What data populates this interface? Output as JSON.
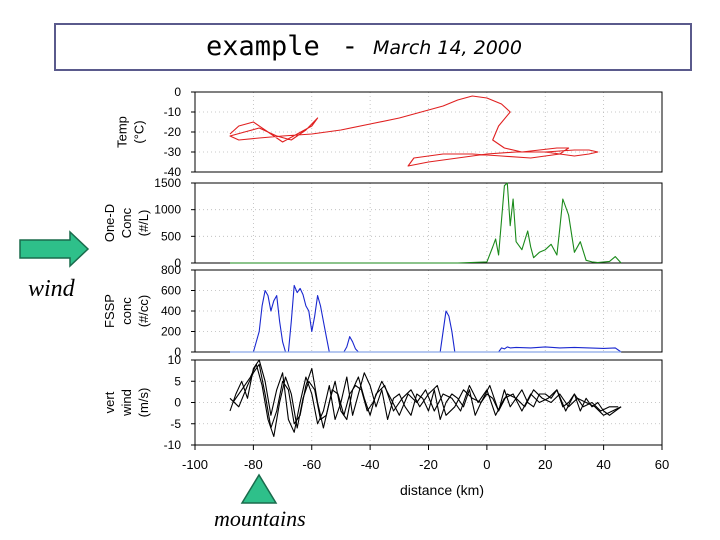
{
  "title": {
    "main": "example",
    "separator": "-",
    "date": "March 14, 2000"
  },
  "annotations": {
    "wind": "wind",
    "mountains": "mountains",
    "arrow_color": "#2ec08a",
    "triangle_color": "#2ec08a"
  },
  "chart_data": {
    "type": "line",
    "shared_x": {
      "label": "distance (km)",
      "range": [
        -100,
        60
      ],
      "ticks": [
        -100,
        -80,
        -60,
        -40,
        -20,
        0,
        20,
        40,
        60
      ]
    },
    "grid": "dotted",
    "panels": [
      {
        "id": "temp",
        "ylabel": [
          "Temp",
          "(°C)"
        ],
        "ylim": [
          -40,
          0
        ],
        "yticks": [
          0,
          -10,
          -20,
          -30,
          -40
        ],
        "color": "#e02020",
        "series": [
          {
            "x": [
              -88,
              -85,
              -80,
              -75,
              -70,
              -65,
              -60,
              -58,
              -62,
              -67,
              -72,
              -78,
              -83,
              -88,
              -85,
              -78,
              -70,
              -60,
              -50,
              -40,
              -30,
              -20,
              -15,
              -10,
              -5,
              0,
              5,
              8,
              4,
              2,
              6,
              12,
              18,
              24,
              28,
              25,
              15,
              5,
              -5,
              -15,
              -25,
              -27,
              -20,
              -10,
              0,
              10,
              20,
              30,
              35,
              38,
              35,
              30,
              25,
              20
            ],
            "y": [
              -21,
              -17,
              -15,
              -20,
              -25,
              -21,
              -17,
              -13,
              -19,
              -24,
              -22,
              -18,
              -20,
              -22,
              -24,
              -23,
              -22,
              -21,
              -19,
              -16,
              -13,
              -9,
              -7,
              -4,
              -2,
              -3,
              -6,
              -10,
              -17,
              -24,
              -28,
              -30,
              -29,
              -28,
              -28,
              -31,
              -33,
              -32,
              -31,
              -31,
              -33,
              -37,
              -35,
              -33,
              -31,
              -30,
              -30,
              -29,
              -29,
              -30,
              -31,
              -32,
              -31,
              -30
            ]
          }
        ]
      },
      {
        "id": "one-d",
        "ylabel": [
          "One-D",
          "Conc",
          "(#/L)"
        ],
        "ylim": [
          0,
          1500
        ],
        "yticks": [
          1500,
          1000,
          500,
          0
        ],
        "color": "#1a8a1a",
        "series": [
          {
            "x": [
              -88,
              -70,
              -55,
              -30,
              -10,
              0,
              2,
              3,
              4,
              5,
              6,
              7,
              8,
              9,
              10,
              12,
              14,
              15,
              16,
              18,
              20,
              22,
              24,
              25,
              26,
              28,
              30,
              32,
              34,
              36,
              38,
              42,
              44,
              46
            ],
            "y": [
              0,
              0,
              0,
              0,
              0,
              20,
              300,
              450,
              150,
              800,
              1450,
              1500,
              700,
              1200,
              400,
              250,
              600,
              300,
              100,
              200,
              250,
              350,
              150,
              650,
              1200,
              900,
              200,
              400,
              50,
              20,
              10,
              30,
              120,
              0
            ]
          }
        ]
      },
      {
        "id": "fssp",
        "ylabel": [
          "FSSP",
          "conc",
          "(#/cc)"
        ],
        "ylim": [
          0,
          800
        ],
        "yticks": [
          800,
          600,
          400,
          200,
          0
        ],
        "color": "#1a28d0",
        "series": [
          {
            "x": [
              -88,
              -80,
              -78,
              -77,
              -76,
              -75,
              -74,
              -73,
              -72,
              -71,
              -70,
              -69,
              -68,
              -67,
              -66,
              -65,
              -64,
              -63,
              -62,
              -61,
              -60,
              -59,
              -58,
              -57,
              -56,
              -55,
              -54,
              -53,
              -52,
              -51,
              -50,
              -49,
              -48,
              -47,
              -46,
              -45,
              -44,
              -43,
              -42,
              -41,
              -40,
              -39,
              -38,
              -37,
              -30,
              -20,
              -16,
              -15,
              -14,
              -13,
              -12,
              -11,
              -10,
              -5,
              0,
              4,
              5,
              6,
              7,
              8,
              10,
              15,
              20,
              25,
              30,
              35,
              40,
              44,
              46
            ],
            "y": [
              0,
              0,
              200,
              450,
              600,
              550,
              400,
              500,
              550,
              300,
              100,
              0,
              0,
              300,
              650,
              580,
              620,
              560,
              450,
              400,
              200,
              350,
              550,
              450,
              300,
              150,
              0,
              0,
              0,
              0,
              0,
              0,
              50,
              150,
              100,
              30,
              0,
              0,
              0,
              0,
              0,
              0,
              0,
              0,
              0,
              0,
              0,
              200,
              400,
              350,
              200,
              0,
              0,
              0,
              0,
              0,
              40,
              30,
              50,
              40,
              45,
              40,
              50,
              40,
              45,
              40,
              35,
              40,
              0
            ]
          }
        ]
      },
      {
        "id": "vert-wind",
        "ylabel": [
          "vert",
          "wind",
          "(m/s)"
        ],
        "ylim": [
          -10,
          10
        ],
        "yticks": [
          10,
          5,
          0,
          -5,
          -10
        ],
        "color": "#000000",
        "series": [
          {
            "x": [
              -88,
              -86,
              -84,
              -82,
              -80,
              -78,
              -76,
              -74,
              -72,
              -70,
              -68,
              -66,
              -64,
              -62,
              -60,
              -58,
              -56,
              -54,
              -52,
              -50,
              -48,
              -46,
              -44,
              -42,
              -40,
              -38,
              -36,
              -34,
              -32,
              -30,
              -28,
              -26,
              -24,
              -22,
              -20,
              -18,
              -16,
              -14,
              -12,
              -10,
              -8,
              -6,
              -4,
              -2,
              0,
              2,
              4,
              6,
              8,
              10,
              12,
              14,
              16,
              18,
              20,
              22,
              24,
              26,
              28,
              30,
              32,
              34,
              36,
              38,
              40,
              42,
              44,
              46
            ],
            "y": [
              -2,
              2,
              5,
              1,
              8,
              10,
              5,
              -3,
              3,
              7,
              -4,
              -7,
              0,
              6,
              2,
              -5,
              -2,
              4,
              -4,
              0,
              6,
              -3,
              2,
              7,
              4,
              -1,
              3,
              -4,
              1,
              2,
              -1,
              -3,
              2,
              1,
              -2,
              3,
              -4,
              0,
              2,
              1,
              -1,
              3,
              -3,
              0,
              2,
              1,
              -2,
              3,
              -1,
              1,
              3,
              0,
              -1,
              2,
              2,
              1,
              3,
              -1,
              0,
              2,
              -2,
              1,
              -1,
              0,
              -2,
              -3,
              -2,
              -1
            ]
          },
          {
            "x": [
              -88,
              -85,
              -82,
              -80,
              -78,
              -76,
              -74,
              -72,
              -70,
              -68,
              -66,
              -64,
              -62,
              -60,
              -58,
              -56,
              -54,
              -52,
              -50,
              -48,
              -46,
              -44,
              -42,
              -40,
              -38,
              -35,
              -32,
              -29,
              -26,
              -23,
              -20,
              -17,
              -14,
              -11,
              -8,
              -5,
              -2,
              1,
              4,
              7,
              10,
              13,
              16,
              19,
              22,
              25,
              28,
              31,
              34,
              37,
              40,
              43,
              46
            ],
            "y": [
              1,
              -1,
              4,
              7,
              9,
              2,
              -6,
              -2,
              5,
              3,
              -5,
              -3,
              4,
              8,
              0,
              -6,
              0,
              5,
              -2,
              -4,
              3,
              6,
              1,
              -3,
              2,
              4,
              -2,
              1,
              3,
              -1,
              2,
              4,
              -3,
              -1,
              3,
              1,
              0,
              4,
              -2,
              2,
              1,
              -1,
              3,
              1,
              0,
              2,
              -1,
              1,
              0,
              -1,
              -3,
              -2,
              -1
            ]
          },
          {
            "x": [
              -87,
              -84,
              -81,
              -79,
              -77,
              -75,
              -73,
              -71,
              -69,
              -67,
              -65,
              -63,
              -61,
              -59,
              -57,
              -55,
              -53,
              -51,
              -49,
              -47,
              -45,
              -43,
              -41,
              -39,
              -36,
              -33,
              -30,
              -27,
              -24,
              -21,
              -18,
              -15,
              -12,
              -9,
              -6,
              -3,
              0,
              3,
              6,
              9,
              12,
              15,
              18,
              21,
              24,
              27,
              30,
              33,
              36,
              39,
              42,
              45
            ],
            "y": [
              0,
              3,
              6,
              9,
              4,
              -4,
              -8,
              0,
              6,
              2,
              -6,
              1,
              5,
              3,
              -4,
              -3,
              3,
              2,
              -3,
              2,
              4,
              3,
              -2,
              0,
              5,
              1,
              -3,
              2,
              0,
              3,
              -2,
              2,
              1,
              -2,
              4,
              0,
              3,
              -3,
              1,
              2,
              -2,
              2,
              0,
              1,
              3,
              -2,
              2,
              -1,
              0,
              -2,
              -1,
              -1
            ]
          }
        ]
      }
    ]
  }
}
